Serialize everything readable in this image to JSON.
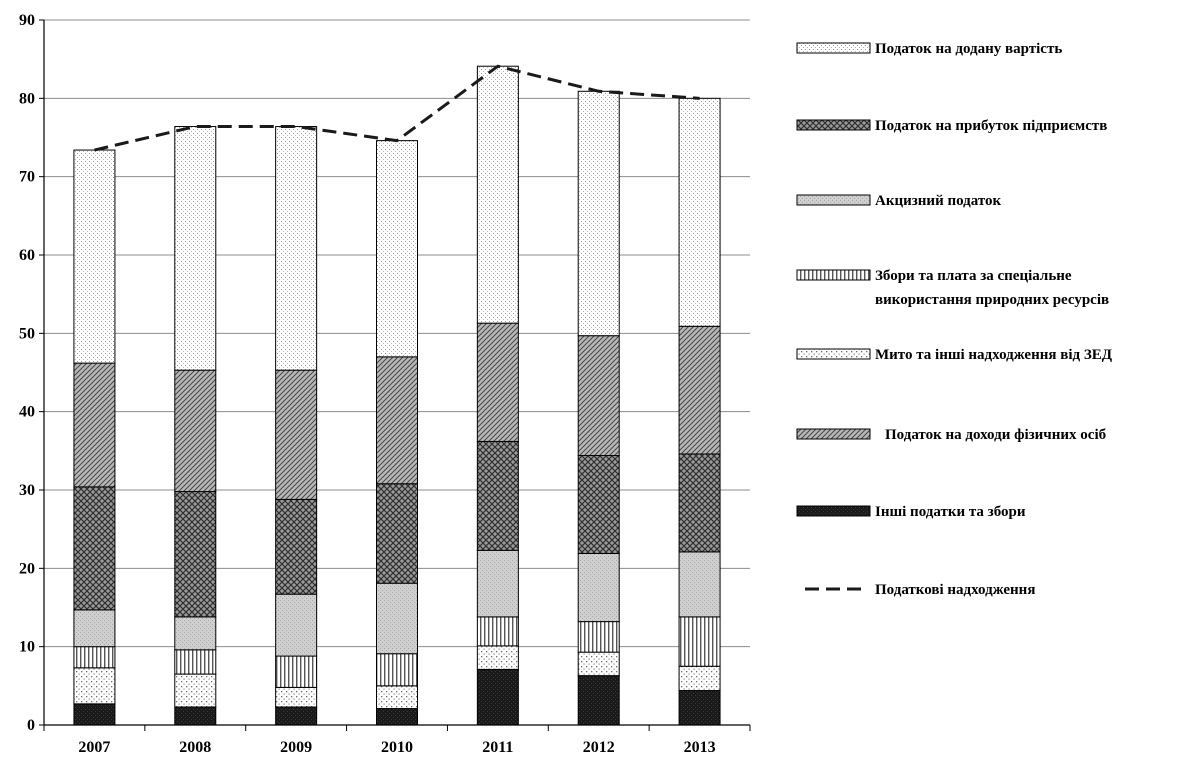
{
  "chart_data": {
    "type": "bar",
    "stacked": true,
    "categories": [
      "2007",
      "2008",
      "2009",
      "2010",
      "2011",
      "2012",
      "2013"
    ],
    "ylim": [
      0,
      90
    ],
    "yticks": [
      "0",
      "10",
      "20",
      "30",
      "40",
      "50",
      "60",
      "70",
      "80",
      "90"
    ],
    "grid": true,
    "legend_position": "right",
    "series": [
      {
        "name": "Інші податки та збори",
        "pattern": "dark",
        "values": [
          2.7,
          2.3,
          2.3,
          2.1,
          7.1,
          6.3,
          4.4
        ]
      },
      {
        "name": "Мито та інші надходження від ЗЕД",
        "pattern": "dots",
        "values": [
          4.6,
          4.2,
          2.5,
          2.9,
          3.0,
          3.0,
          3.1
        ]
      },
      {
        "name": "Збори та плата за спеціальне використання природних ресурсів",
        "pattern": "vstripes",
        "values": [
          2.7,
          3.1,
          4.0,
          4.1,
          3.7,
          3.9,
          6.3
        ]
      },
      {
        "name": "Акцизний податок",
        "pattern": "lightgray",
        "values": [
          4.7,
          4.2,
          7.9,
          9.0,
          8.5,
          8.7,
          8.3
        ]
      },
      {
        "name": "Податок на прибуток підприємств",
        "pattern": "crosshatch",
        "values": [
          15.7,
          16.0,
          12.1,
          12.7,
          13.9,
          12.5,
          12.5
        ]
      },
      {
        "name": "Податок на доходи фізичних осіб",
        "pattern": "diag",
        "values": [
          15.8,
          15.5,
          16.5,
          16.2,
          15.1,
          15.3,
          16.3
        ]
      },
      {
        "name": "Податок на додану вартість",
        "pattern": "finedots",
        "values": [
          27.2,
          31.1,
          31.1,
          27.6,
          32.8,
          31.2,
          29.1
        ]
      }
    ],
    "line": {
      "name": "Податкові надходження",
      "values": [
        73.4,
        76.4,
        76.4,
        74.6,
        84.1,
        80.9,
        80.0
      ]
    },
    "legend_order": [
      {
        "name": "Податок на додану вартість",
        "pattern": "finedots"
      },
      {
        "name": "Податок на прибуток підприємств",
        "pattern": "crosshatch"
      },
      {
        "name": "Акцизний податок",
        "pattern": "lightgray"
      },
      {
        "name": "Збори та плата за спеціальне використання природних ресурсів",
        "pattern": "vstripes"
      },
      {
        "name": "Мито та інші надходження від ЗЕД",
        "pattern": "dots"
      },
      {
        "name": "Податок на доходи фізичних осіб",
        "pattern": "diag"
      },
      {
        "name": "Інші податки та збори",
        "pattern": "dark"
      },
      {
        "name": "Податкові надходження",
        "pattern": "dashed-line"
      }
    ],
    "legend_lines": [
      [
        "Податок на додану вартість"
      ],
      [
        "Податок на прибуток підприємств"
      ],
      [
        "Акцизний податок"
      ],
      [
        "Збори та плата за спеціальне",
        "використання природних ресурсів"
      ],
      [
        "Мито та інші надходження від ЗЕД"
      ],
      [
        "Податок на доходи фізичних осіб"
      ],
      [
        "Інші податки та збори"
      ],
      [
        "Податкові надходження"
      ]
    ]
  }
}
